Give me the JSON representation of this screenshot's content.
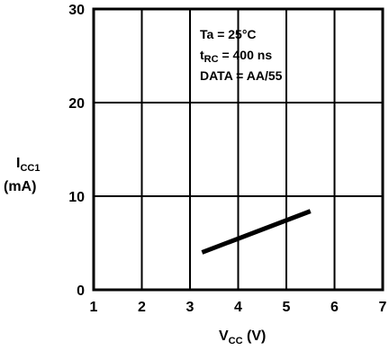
{
  "chart_data": {
    "type": "line",
    "xlabel": {
      "main": "V",
      "sub": "CC",
      "unit": " (V)"
    },
    "ylabel": {
      "main": "I",
      "sub": "CC1",
      "unit": "(mA)"
    },
    "xlim": [
      1,
      7
    ],
    "ylim": [
      0,
      30
    ],
    "x_ticks": [
      "1",
      "2",
      "3",
      "4",
      "5",
      "6",
      "7"
    ],
    "y_ticks": [
      "0",
      "10",
      "20",
      "30"
    ],
    "grid": true,
    "annotations": [
      {
        "text": "Ta = 25°C"
      },
      {
        "main": "t",
        "sub": "RC",
        "rest": " = 400 ns"
      },
      {
        "text": "DATA = AA/55"
      }
    ],
    "series": [
      {
        "x": [
          3.25,
          5.5
        ],
        "y": [
          4.0,
          8.4
        ]
      }
    ]
  }
}
